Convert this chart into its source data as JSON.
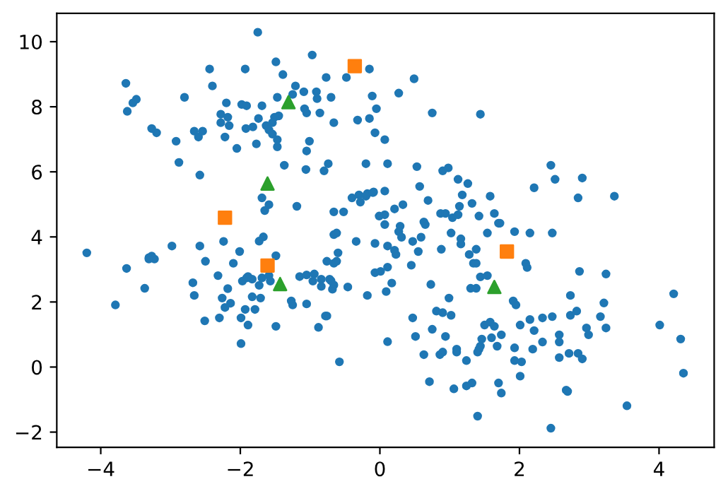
{
  "chart_data": {
    "type": "scatter",
    "xlim": [
      -4.63,
      4.79
    ],
    "ylim": [
      -2.47,
      10.87
    ],
    "xticks": [
      -4,
      -2,
      0,
      2,
      4
    ],
    "yticks": [
      -2,
      0,
      2,
      4,
      6,
      8,
      10
    ],
    "grid": false,
    "legend": false,
    "series": [
      {
        "color": "#1f77b4",
        "marker": "circle",
        "x": [
          -1.75,
          -3.64,
          -3.62,
          -3.54,
          -3.49,
          -2.8,
          -2.44,
          -2.4,
          -1.93,
          -1.49,
          -1.39,
          -0.97,
          -0.48,
          -0.15,
          -0.77,
          -1.21,
          -1.25,
          -1.47,
          -1.09,
          -0.91,
          -0.9,
          -0.7,
          -0.11,
          -0.05,
          -0.15,
          -0.32,
          -0.07,
          -0.66,
          -0.86,
          -1.05,
          -1.08,
          -1.45,
          -1.51,
          -1.54,
          -1.69,
          -1.74,
          -2.2,
          -2.28,
          -2.18,
          -2.16,
          -2.28,
          -1.98,
          -1.91,
          -1.82,
          -1.92,
          -1.63,
          -1.59,
          -1.54,
          -1.47,
          -1.47,
          -2.22,
          -2.05,
          -1.77,
          -1.01,
          -1.05,
          -1.37,
          -1.06,
          -0.74,
          -0.8,
          -0.2,
          -3.27,
          -3.2,
          -2.92,
          -2.88,
          -2.66,
          -2.54,
          -2.6,
          -2.58,
          -1.69,
          -1.59,
          -1.65,
          -1.19,
          -0.66,
          -0.52,
          -0.4,
          -0.3,
          -0.28,
          -0.2,
          -0.09,
          -0.18,
          -0.01,
          -0.66,
          -0.62,
          0.49,
          0.27,
          0.75,
          1.44,
          0.07,
          0.11,
          0.53,
          0.9,
          0.98,
          1.12,
          1.26,
          0.57,
          0.69,
          1.18,
          1.58,
          1.32,
          1.14,
          2.21,
          2.45,
          2.51,
          2.9,
          2.84,
          3.36,
          0.07,
          -0.1,
          0.33,
          0.21,
          0.07,
          0.07,
          0.29,
          0.27,
          0.31,
          0.59,
          0.63,
          0.65,
          0.87,
          0.94,
          1.04,
          1.12,
          1.02,
          1.16,
          1.42,
          1.64,
          1.7,
          1.72,
          1.54,
          1.93,
          2.15,
          2.47,
          -4.2,
          -3.79,
          -3.63,
          -3.37,
          -3.31,
          -3.27,
          -3.31,
          -3.23,
          -2.98,
          -2.58,
          -2.5,
          -2.68,
          -2.66,
          -2.51,
          -2.32,
          -2.24,
          -2.26,
          -2.18,
          -2.14,
          -2.22,
          -2.3,
          -2.1,
          -2.01,
          -1.97,
          -1.99,
          -1.93,
          -1.89,
          -1.99,
          -1.91,
          -1.89,
          -1.83,
          -1.83,
          -1.79,
          -1.73,
          -1.71,
          -1.73,
          -1.67,
          -1.69,
          -1.59,
          -1.57,
          -1.49,
          -1.49,
          -1.27,
          -1.25,
          -1.15,
          -1.05,
          -0.94,
          -1.05,
          -0.96,
          -0.88,
          -0.78,
          -0.76,
          -0.76,
          -0.72,
          -0.7,
          -0.66,
          -0.62,
          -0.6,
          -0.84,
          -0.84,
          -0.66,
          -0.68,
          -0.58,
          -0.46,
          -0.34,
          -0.18,
          -0.07,
          -0.07,
          0.01,
          0.11,
          0.21,
          0.23,
          0.47,
          0.55,
          0.45,
          0.88,
          1.16,
          1.28,
          1.38,
          1.34,
          1.38,
          1.44,
          1.54,
          1.3,
          1.38,
          2.09,
          2.11,
          2.86,
          3.24,
          0.11,
          0.17,
          0.09,
          0.73,
          0.99,
          1.91,
          1.95,
          2.73,
          3.21,
          4.21,
          0.81,
          0.9,
          1.02,
          0.47,
          0.11,
          0.51,
          0.75,
          0.94,
          1.5,
          1.58,
          1.64,
          1.74,
          1.6,
          2.01,
          2.15,
          2.21,
          2.33,
          2.47,
          2.33,
          2.73,
          2.82,
          2.57,
          2.57,
          2.57,
          2.96,
          2.99,
          3.24,
          3.16,
          2.71,
          2.84,
          2.9,
          4.01,
          4.31,
          4.35,
          1.46,
          1.42,
          1.4,
          1.44,
          1.68,
          1.93,
          1.93,
          2.03,
          2.01,
          2.19,
          0.63,
          0.86,
          0.9,
          1.1,
          1.1,
          1.24,
          0.71,
          1.06,
          1.24,
          1.32,
          1.7,
          1.74,
          2.67,
          2.69,
          1.4,
          2.45,
          3.54
        ],
        "values": [
          10.29,
          8.72,
          7.86,
          8.12,
          8.23,
          8.29,
          9.16,
          8.64,
          9.16,
          9.38,
          8.99,
          9.59,
          8.9,
          9.16,
          8.9,
          8.64,
          8.38,
          8.29,
          8.46,
          8.46,
          8.25,
          8.29,
          8.33,
          7.94,
          7.64,
          7.59,
          7.2,
          7.51,
          7.81,
          7.81,
          7.94,
          7.72,
          7.68,
          7.51,
          8.03,
          7.64,
          8.12,
          7.77,
          7.68,
          7.42,
          7.51,
          8.07,
          8.03,
          7.38,
          7.33,
          7.42,
          7.29,
          7.16,
          6.99,
          6.77,
          7.07,
          6.72,
          6.86,
          6.94,
          6.64,
          6.2,
          6.07,
          6.25,
          6.03,
          6.25,
          7.33,
          7.2,
          6.94,
          6.29,
          7.25,
          7.25,
          7.07,
          5.9,
          5.2,
          4.99,
          4.81,
          4.94,
          4.77,
          4.77,
          5.2,
          5.29,
          5.07,
          5.25,
          5.38,
          5.33,
          4.64,
          4.07,
          4.12,
          8.86,
          8.42,
          7.81,
          7.77,
          6.99,
          6.25,
          6.16,
          6.03,
          6.12,
          5.77,
          5.64,
          5.55,
          5.12,
          5.29,
          5.25,
          5.03,
          4.94,
          5.51,
          6.2,
          5.77,
          5.81,
          5.2,
          5.25,
          5.41,
          5.36,
          4.99,
          4.86,
          4.68,
          4.38,
          4.33,
          4.16,
          3.99,
          3.99,
          4.46,
          4.38,
          4.72,
          4.72,
          4.59,
          4.68,
          4.12,
          3.94,
          4.64,
          4.72,
          4.42,
          4.42,
          4.12,
          4.16,
          4.12,
          4.12,
          3.51,
          1.91,
          3.03,
          2.42,
          3.36,
          3.41,
          3.32,
          3.32,
          3.72,
          3.72,
          3.25,
          2.59,
          2.2,
          1.42,
          2.81,
          3.86,
          2.12,
          2.41,
          1.96,
          1.83,
          1.51,
          3.19,
          3.55,
          2.64,
          1.51,
          1.77,
          1.29,
          0.72,
          2.74,
          2.78,
          2.7,
          2.16,
          1.77,
          2.51,
          2.12,
          3.87,
          4.0,
          2.74,
          2.81,
          2.64,
          3.42,
          1.25,
          2.03,
          1.91,
          2.78,
          2.83,
          2.86,
          1.94,
          2.64,
          1.22,
          1.57,
          1.57,
          3.25,
          2.7,
          2.65,
          3.19,
          3.25,
          3.51,
          2.7,
          2.48,
          2.52,
          2.39,
          0.16,
          2.46,
          3.86,
          2.2,
          3.8,
          2.9,
          2.94,
          3.72,
          3.59,
          3.46,
          3.86,
          3.55,
          3.13,
          3.62,
          3.78,
          3.46,
          3.62,
          3.19,
          3.19,
          2.77,
          2.81,
          2.42,
          2.42,
          3.19,
          3.06,
          2.94,
          2.86,
          3.07,
          2.58,
          2.32,
          2.54,
          2.12,
          2.03,
          1.91,
          2.2,
          1.97,
          2.25,
          1.72,
          1.67,
          1.59,
          1.51,
          0.78,
          0.94,
          1.16,
          0.94,
          1.29,
          1.38,
          1.25,
          0.99,
          0.9,
          1.29,
          1.46,
          1.12,
          1.51,
          1.55,
          0.77,
          1.59,
          1.72,
          0.99,
          0.77,
          0.29,
          1.2,
          0.99,
          1.2,
          1.55,
          0.42,
          0.42,
          0.25,
          1.29,
          0.86,
          -0.19,
          0.86,
          0.55,
          0.46,
          0.64,
          0.64,
          0.59,
          0.2,
          0.16,
          -0.28,
          0.55,
          0.38,
          0.38,
          0.46,
          0.55,
          0.46,
          0.2,
          -0.45,
          -0.67,
          -0.58,
          -0.49,
          -0.49,
          -0.8,
          -0.71,
          -0.75,
          -1.51,
          -1.88,
          -1.19
        ]
      },
      {
        "color": "#ff7f0e",
        "marker": "square",
        "x": [
          -0.36,
          -2.22,
          -1.61,
          1.82
        ],
        "values": [
          9.25,
          4.59,
          3.12,
          3.55
        ]
      },
      {
        "color": "#2ca02c",
        "marker": "triangle",
        "x": [
          -1.31,
          -1.61,
          -1.43,
          1.64
        ],
        "values": [
          8.14,
          5.64,
          2.55,
          2.46
        ]
      }
    ]
  }
}
